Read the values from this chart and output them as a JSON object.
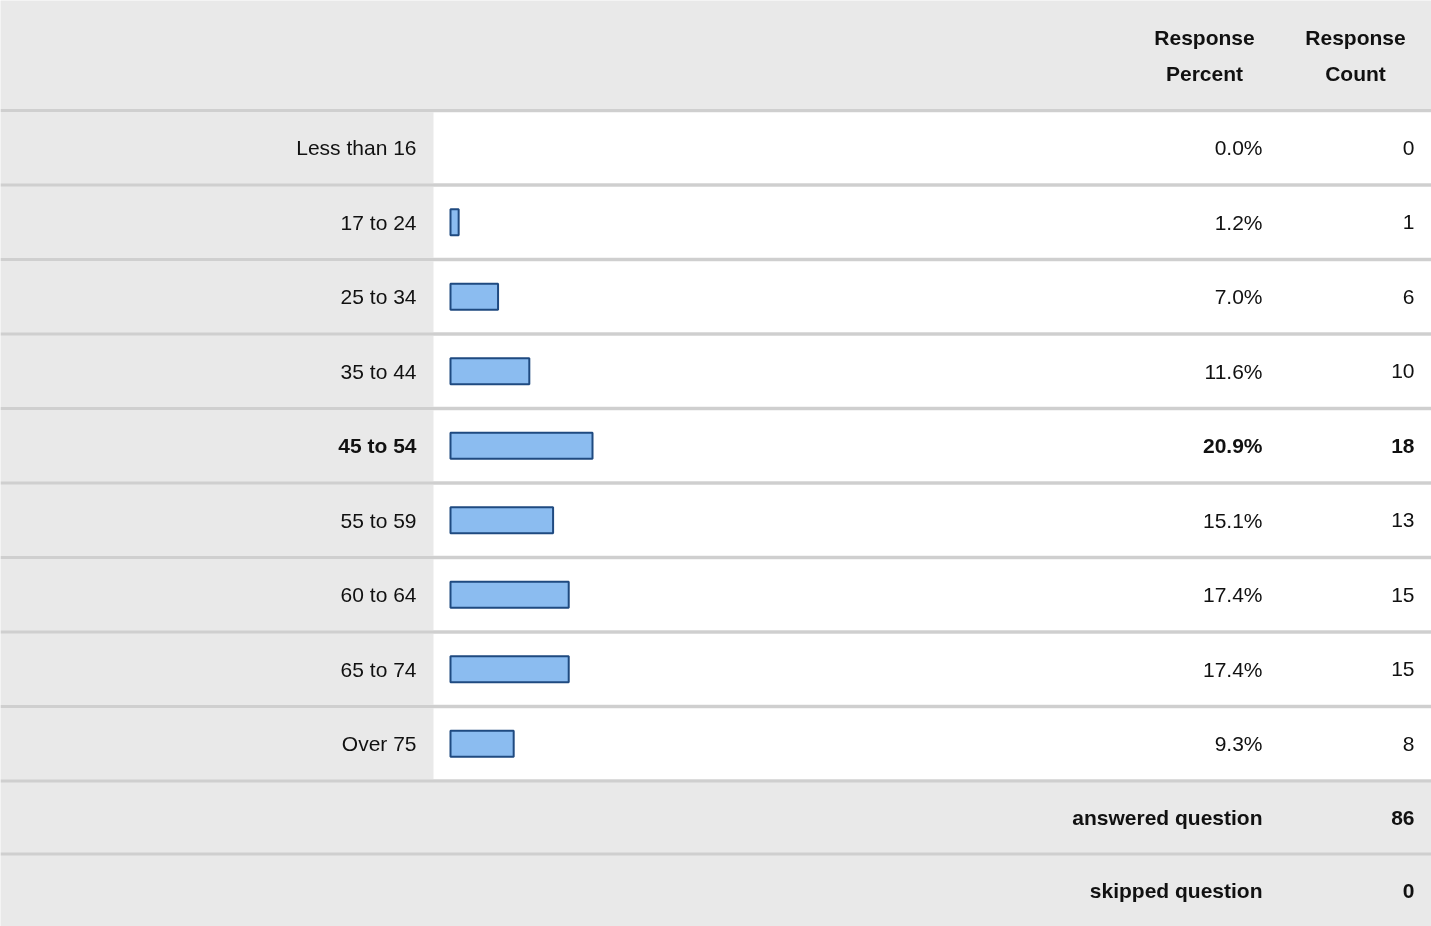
{
  "chart_data": {
    "type": "bar",
    "orientation": "horizontal",
    "categories": [
      "Less than 16",
      "17 to 24",
      "25 to 34",
      "35 to 44",
      "45 to 54",
      "55 to 59",
      "60 to 64",
      "65 to 74",
      "Over 75"
    ],
    "values": [
      0.0,
      1.2,
      7.0,
      11.6,
      20.9,
      15.1,
      17.4,
      17.4,
      9.3
    ],
    "value_labels": [
      "0.0%",
      "1.2%",
      "7.0%",
      "11.6%",
      "20.9%",
      "15.1%",
      "17.4%",
      "17.4%",
      "9.3%"
    ],
    "color": "#8bbcf0",
    "annotations": [
      "Response Percent",
      "Response Count",
      "0",
      "1",
      "6",
      "10",
      "18",
      "13",
      "15",
      "15",
      "8",
      "answered question",
      "86",
      "skipped question",
      "0"
    ]
  }
}
